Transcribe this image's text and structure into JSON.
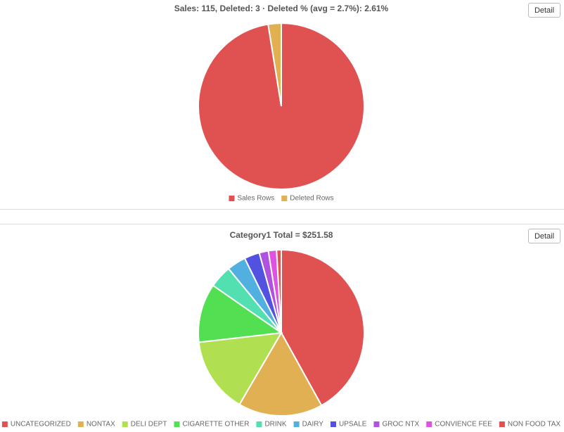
{
  "chart_data": [
    {
      "type": "pie",
      "title": "Sales: 115, Deleted: 3 · Deleted % (avg = 2.7%): 2.61%",
      "categories": [
        "Sales Rows",
        "Deleted Rows"
      ],
      "values": [
        115,
        3
      ],
      "colors": [
        "#e05252",
        "#e0b052"
      ]
    },
    {
      "type": "pie",
      "title": "Category1 Total = $251.58",
      "categories": [
        "UNCATEGORIZED",
        "NONTAX",
        "DELI DEPT",
        "CIGARETTE OTHER",
        "DRINK",
        "DAIRY",
        "UPSALE",
        "GROC NTX",
        "CONVIENCE FEE",
        "NON FOOD TAX"
      ],
      "values": [
        105.7,
        41.5,
        37.2,
        28.9,
        11.1,
        9.3,
        7.5,
        4.5,
        4.0,
        2.3
      ],
      "colors": [
        "#e05252",
        "#e0b052",
        "#b0e052",
        "#52e052",
        "#52e0b0",
        "#52b0e0",
        "#5252e0",
        "#b052e0",
        "#e052e0",
        "#e05252"
      ]
    }
  ],
  "detail_buttons": [
    "Detail",
    "Detail"
  ]
}
